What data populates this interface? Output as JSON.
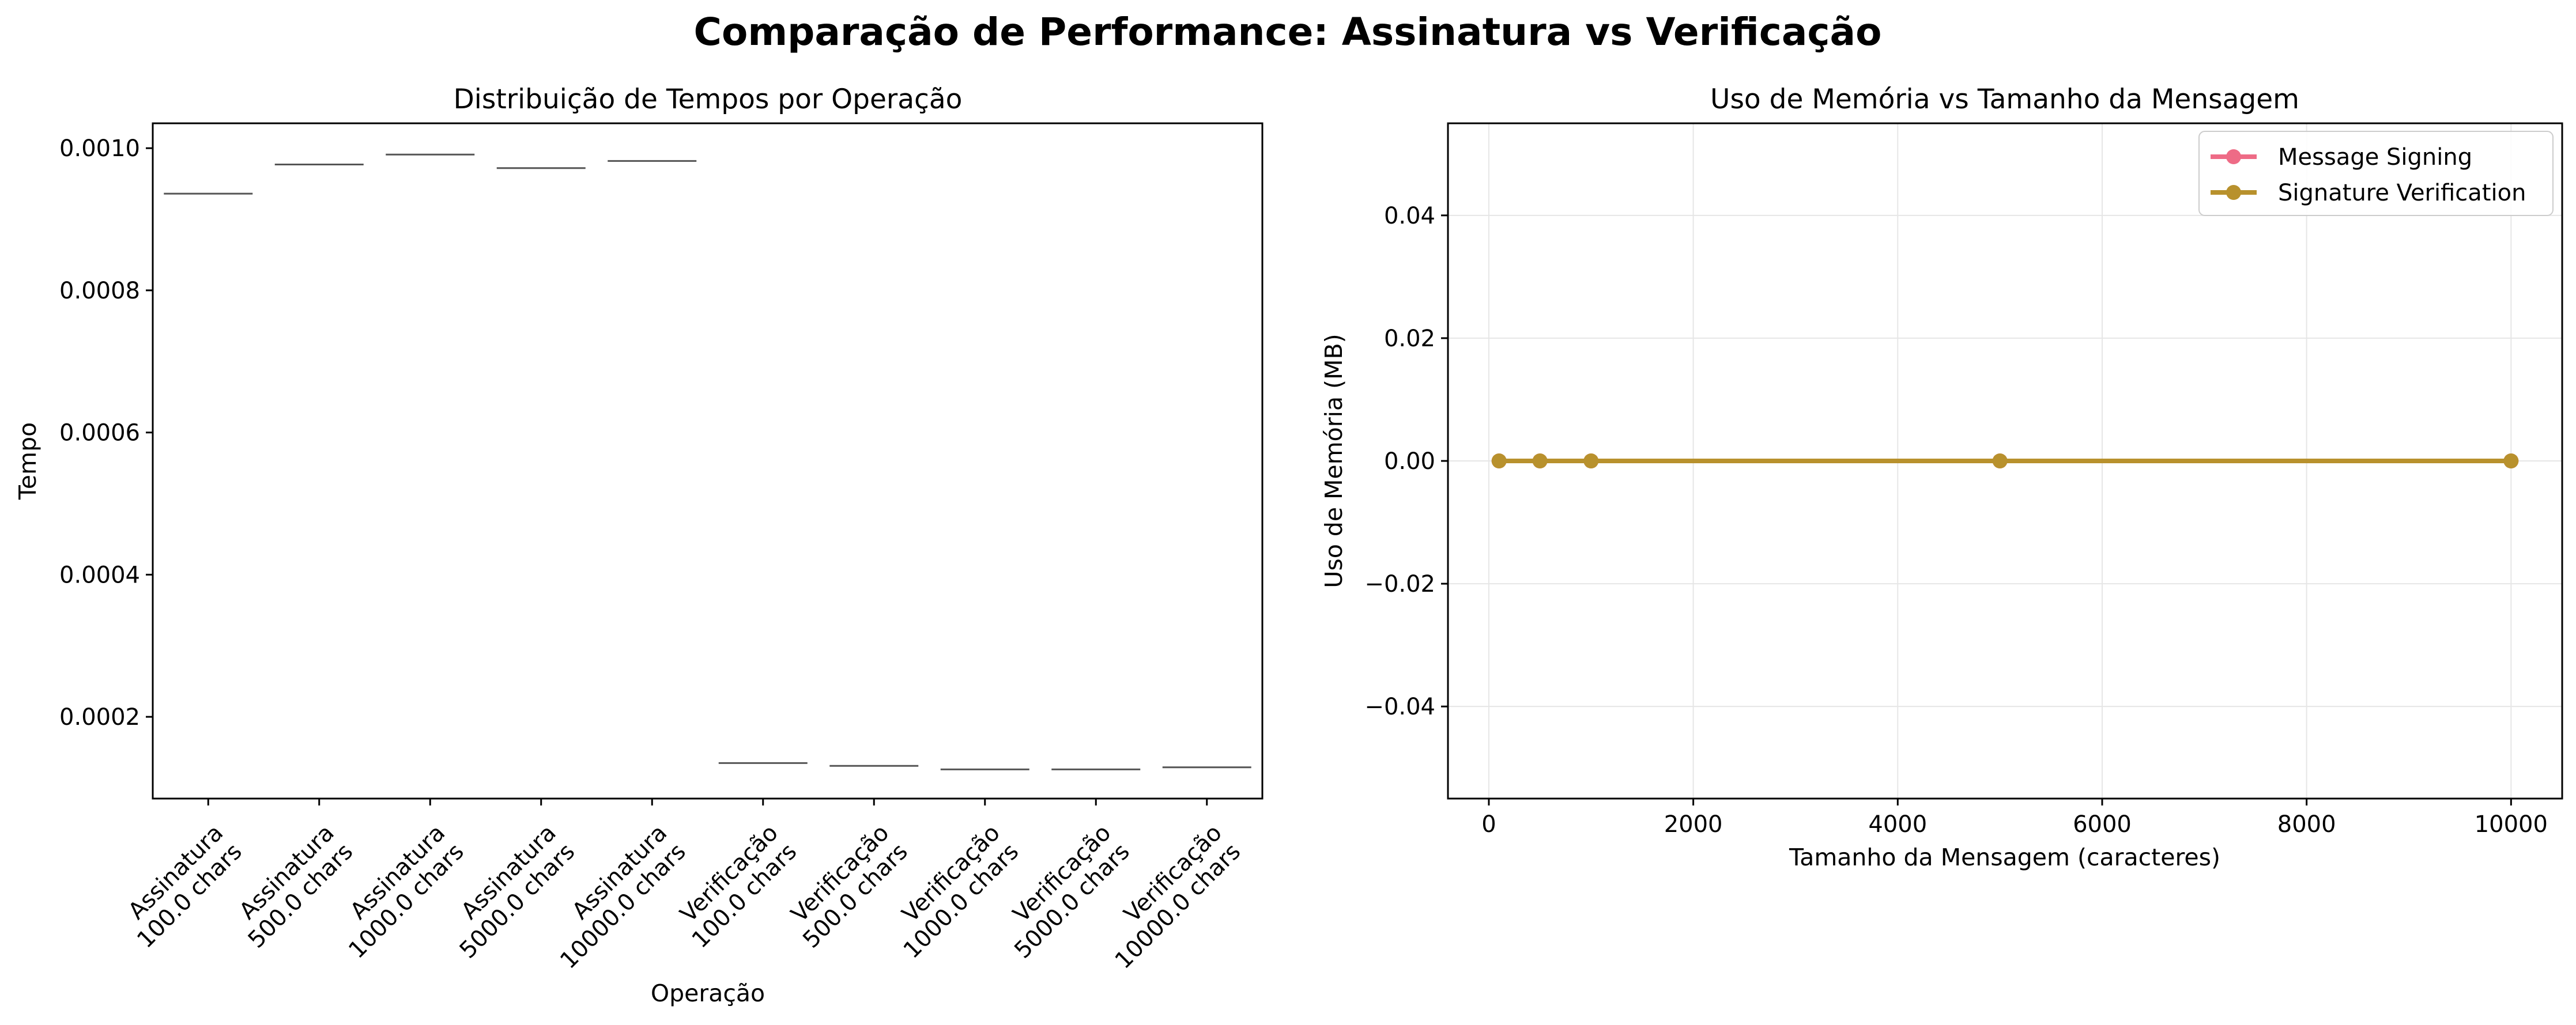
{
  "figure": {
    "title": "Comparação de Performance: Assinatura vs Verificação"
  },
  "chart_data": [
    {
      "type": "box",
      "title": "Distribuição de Tempos por Operação",
      "xlabel": "Operação",
      "ylabel": "Tempo",
      "ylim": [
        8.5e-05,
        0.001035
      ],
      "yticks": [
        0.0002,
        0.0004,
        0.0006,
        0.0008,
        0.001
      ],
      "ytick_labels": [
        "0.0002",
        "0.0004",
        "0.0006",
        "0.0008",
        "0.0010"
      ],
      "categories": [
        [
          "Assinatura",
          "100.0 chars"
        ],
        [
          "Assinatura",
          "500.0 chars"
        ],
        [
          "Assinatura",
          "1000.0 chars"
        ],
        [
          "Assinatura",
          "5000.0 chars"
        ],
        [
          "Assinatura",
          "10000.0 chars"
        ],
        [
          "Verificação",
          "100.0 chars"
        ],
        [
          "Verificação",
          "500.0 chars"
        ],
        [
          "Verificação",
          "1000.0 chars"
        ],
        [
          "Verificação",
          "5000.0 chars"
        ],
        [
          "Verificação",
          "10000.0 chars"
        ]
      ],
      "values": [
        0.000936,
        0.000977,
        0.000991,
        0.000972,
        0.000982,
        0.000135,
        0.000131,
        0.000126,
        0.000126,
        0.000129
      ],
      "box_color": "#555555",
      "grid": false
    },
    {
      "type": "line",
      "title": "Uso de Memória vs Tamanho da Mensagem",
      "xlabel": "Tamanho da Mensagem (caracteres)",
      "ylabel": "Uso de Memória (MB)",
      "xlim": [
        -400,
        10500
      ],
      "ylim": [
        -0.055,
        0.055
      ],
      "xticks": [
        0,
        2000,
        4000,
        6000,
        8000,
        10000
      ],
      "xtick_labels": [
        "0",
        "2000",
        "4000",
        "6000",
        "8000",
        "10000"
      ],
      "yticks": [
        -0.04,
        -0.02,
        0.0,
        0.02,
        0.04
      ],
      "ytick_labels": [
        "−0.04",
        "−0.02",
        "0.00",
        "0.02",
        "0.04"
      ],
      "grid": true,
      "legend_position": "top-right",
      "series": [
        {
          "name": "Message Signing",
          "color": "#ee6b86",
          "x": [
            100,
            500,
            1000,
            5000,
            10000
          ],
          "y": [
            0,
            0,
            0,
            0,
            0
          ]
        },
        {
          "name": "Signature Verification",
          "color": "#b8912d",
          "x": [
            100,
            500,
            1000,
            5000,
            10000
          ],
          "y": [
            0,
            0,
            0,
            0,
            0
          ]
        }
      ]
    }
  ]
}
